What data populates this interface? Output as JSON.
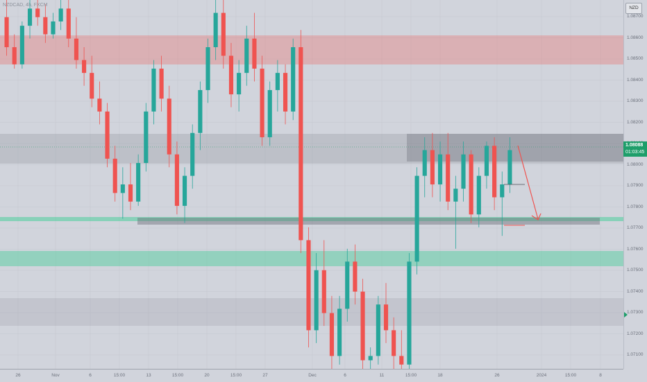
{
  "symbol": {
    "text": "NZDCAD, 4h, FXCM"
  },
  "currency": "NZD",
  "last_price": {
    "value": "1.08088",
    "countdown": "01:03:45",
    "color": "#1e9e6a"
  },
  "price_ticks": [
    "1.08700",
    "1.08600",
    "1.08500",
    "1.08400",
    "1.08300",
    "1.08200",
    "1.08100",
    "1.08000",
    "1.07900",
    "1.07800",
    "1.07700",
    "1.07600",
    "1.07500",
    "1.07400",
    "1.07300",
    "1.07200",
    "1.07100"
  ],
  "time_ticks": [
    "26",
    "Nov",
    "6",
    "15:00",
    "13",
    "15:00",
    "20",
    "15:00",
    "27",
    "Dec",
    "6",
    "11",
    "15:00",
    "18",
    "26",
    "2024",
    "15:00",
    "8"
  ],
  "colors": {
    "bull": "#26a69a",
    "bear": "#ef5350",
    "red_zone": "#e8a1a6",
    "green_zone": "#8fd6b5",
    "gray_zone": "#a7aab3",
    "arrow": "#ef5350"
  },
  "chart_data": {
    "type": "candlestick",
    "ylim": [
      1.0706,
      1.0878
    ],
    "candles": [
      [
        1.087,
        1.0878,
        1.0852,
        1.0856
      ],
      [
        1.0856,
        1.0862,
        1.0846,
        1.0848
      ],
      [
        1.0848,
        1.0868,
        1.0846,
        1.0866
      ],
      [
        1.0866,
        1.0878,
        1.086,
        1.0874
      ],
      [
        1.0874,
        1.0878,
        1.0866,
        1.087
      ],
      [
        1.087,
        1.0876,
        1.0858,
        1.0862
      ],
      [
        1.0862,
        1.0872,
        1.086,
        1.0868
      ],
      [
        1.0868,
        1.0878,
        1.0864,
        1.0874
      ],
      [
        1.0874,
        1.0878,
        1.0856,
        1.086
      ],
      [
        1.086,
        1.087,
        1.0846,
        1.085
      ],
      [
        1.085,
        1.0856,
        1.0838,
        1.0844
      ],
      [
        1.0844,
        1.0852,
        1.0828,
        1.0832
      ],
      [
        1.0832,
        1.084,
        1.082,
        1.0826
      ],
      [
        1.0826,
        1.083,
        1.08,
        1.0804
      ],
      [
        1.0804,
        1.081,
        1.0784,
        1.0788
      ],
      [
        1.0788,
        1.08,
        1.0776,
        1.0792
      ],
      [
        1.0792,
        1.0802,
        1.078,
        1.0784
      ],
      [
        1.0784,
        1.0806,
        1.0782,
        1.0802
      ],
      [
        1.0802,
        1.083,
        1.0798,
        1.0826
      ],
      [
        1.0826,
        1.085,
        1.082,
        1.0846
      ],
      [
        1.0846,
        1.0852,
        1.0826,
        1.0832
      ],
      [
        1.0832,
        1.0838,
        1.08,
        1.0806
      ],
      [
        1.0806,
        1.0812,
        1.0778,
        1.0782
      ],
      [
        1.0782,
        1.08,
        1.0774,
        1.0796
      ],
      [
        1.0796,
        1.082,
        1.079,
        1.0816
      ],
      [
        1.0816,
        1.084,
        1.0808,
        1.0836
      ],
      [
        1.0836,
        1.086,
        1.083,
        1.0856
      ],
      [
        1.0856,
        1.0878,
        1.085,
        1.0872
      ],
      [
        1.0872,
        1.0878,
        1.0846,
        1.0852
      ],
      [
        1.0852,
        1.0858,
        1.0828,
        1.0834
      ],
      [
        1.0834,
        1.085,
        1.0826,
        1.0844
      ],
      [
        1.0844,
        1.0866,
        1.0838,
        1.086
      ],
      [
        1.086,
        1.0872,
        1.084,
        1.0846
      ],
      [
        1.0846,
        1.0852,
        1.081,
        1.0814
      ],
      [
        1.0814,
        1.084,
        1.081,
        1.0836
      ],
      [
        1.0836,
        1.085,
        1.0826,
        1.0844
      ],
      [
        1.0844,
        1.0848,
        1.082,
        1.0826
      ],
      [
        1.0826,
        1.086,
        1.0822,
        1.0856
      ],
      [
        1.0856,
        1.0864,
        1.076,
        1.0766
      ],
      [
        1.0766,
        1.0772,
        1.0716,
        1.0724
      ],
      [
        1.0724,
        1.076,
        1.0718,
        1.0752
      ],
      [
        1.0752,
        1.0766,
        1.0726,
        1.0732
      ],
      [
        1.0732,
        1.074,
        1.0706,
        1.0712
      ],
      [
        1.0712,
        1.074,
        1.0708,
        1.0734
      ],
      [
        1.0734,
        1.0762,
        1.0728,
        1.0756
      ],
      [
        1.0756,
        1.0764,
        1.0736,
        1.0742
      ],
      [
        1.0742,
        1.0748,
        1.0706,
        1.071
      ],
      [
        1.071,
        1.0716,
        1.0706,
        1.0712
      ],
      [
        1.0712,
        1.074,
        1.0708,
        1.0736
      ],
      [
        1.0736,
        1.0746,
        1.0718,
        1.0724
      ],
      [
        1.0724,
        1.073,
        1.0706,
        1.0712
      ],
      [
        1.0712,
        1.0724,
        1.0706,
        1.0708
      ],
      [
        1.0708,
        1.076,
        1.0704,
        1.0756
      ],
      [
        1.0756,
        1.08,
        1.075,
        1.0796
      ],
      [
        1.0796,
        1.0814,
        1.0786,
        1.0808
      ],
      [
        1.0808,
        1.0816,
        1.0786,
        1.0792
      ],
      [
        1.0792,
        1.0812,
        1.0784,
        1.0806
      ],
      [
        1.0806,
        1.0816,
        1.078,
        1.0784
      ],
      [
        1.0784,
        1.0796,
        1.0762,
        1.079
      ],
      [
        1.079,
        1.0812,
        1.0784,
        1.0806
      ],
      [
        1.0806,
        1.0808,
        1.0774,
        1.0778
      ],
      [
        1.0778,
        1.08,
        1.0772,
        1.0796
      ],
      [
        1.0796,
        1.0812,
        1.079,
        1.081
      ],
      [
        1.081,
        1.0814,
        1.078,
        1.0786
      ],
      [
        1.0786,
        1.0798,
        1.0768,
        1.0792
      ],
      [
        1.0792,
        1.0814,
        1.0788,
        1.0808
      ]
    ]
  }
}
